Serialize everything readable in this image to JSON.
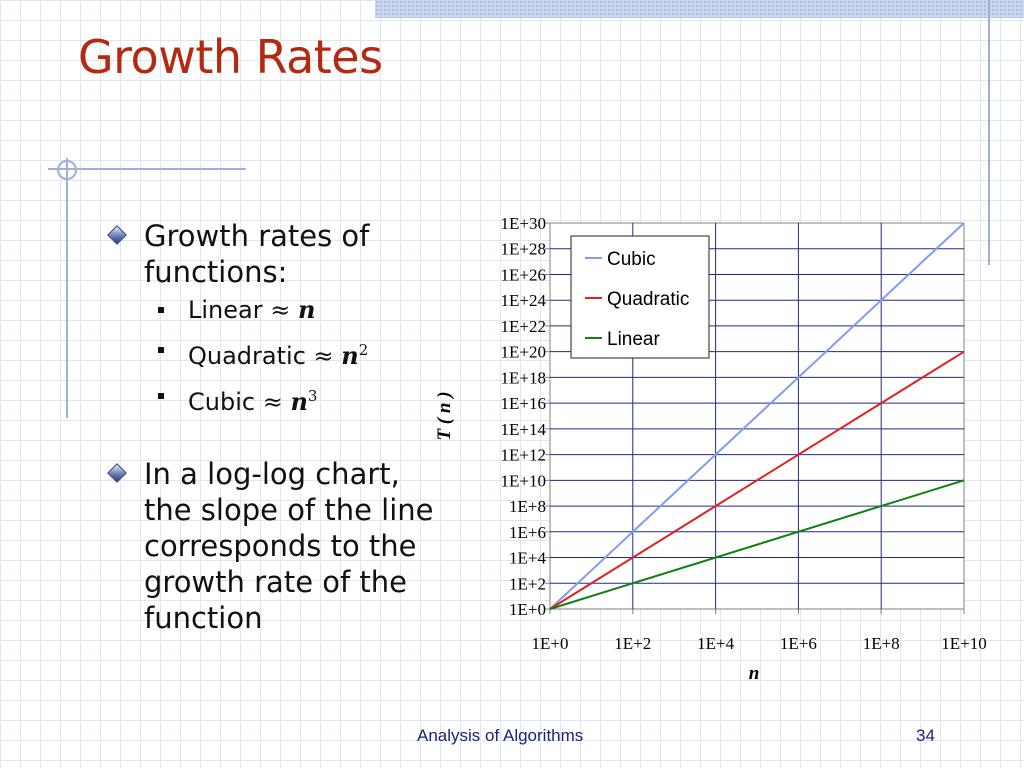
{
  "slide": {
    "title": "Growth Rates",
    "footer": {
      "course": "Analysis of Algorithms",
      "page_number": "34"
    }
  },
  "bullets": {
    "first": {
      "text": "Growth rates of functions:",
      "sub": [
        {
          "label": "Linear",
          "approx": "≈",
          "var": "n",
          "exp": ""
        },
        {
          "label": "Quadratic",
          "approx": "≈",
          "var": "n",
          "exp": "2"
        },
        {
          "label": "Cubic",
          "approx": "≈",
          "var": "n",
          "exp": "3"
        }
      ]
    },
    "second": {
      "text": "In a log-log chart, the slope of the line corresponds to the growth rate of the function"
    }
  },
  "chart_data": {
    "type": "line",
    "xlabel": "n",
    "ylabel": "T ( n )",
    "x_scale": "log",
    "y_scale": "log",
    "xlim": [
      1,
      10000000000
    ],
    "ylim": [
      1,
      1e+30
    ],
    "x_ticks": [
      "1E+0",
      "1E+2",
      "1E+4",
      "1E+6",
      "1E+8",
      "1E+10"
    ],
    "y_ticks": [
      "1E+0",
      "1E+2",
      "1E+4",
      "1E+6",
      "1E+8",
      "1E+10",
      "1E+12",
      "1E+14",
      "1E+16",
      "1E+18",
      "1E+20",
      "1E+22",
      "1E+24",
      "1E+26",
      "1E+28",
      "1E+30"
    ],
    "grid": true,
    "legend_position": "top-right",
    "series": [
      {
        "name": "Cubic",
        "color": "#7f9cf0",
        "x": [
          1,
          10000000000
        ],
        "y": [
          1,
          1e+30
        ]
      },
      {
        "name": "Quadratic",
        "color": "#e02020",
        "x": [
          1,
          10000000000
        ],
        "y": [
          1,
          1e+20
        ]
      },
      {
        "name": "Linear",
        "color": "#108010",
        "x": [
          1,
          10000000000
        ],
        "y": [
          1,
          10000000000.0
        ]
      }
    ]
  },
  "colors": {
    "title": "#b22a12",
    "footer": "#1a237e",
    "grid_lines": "#1e2a8c"
  },
  "icons": {
    "bullet_level1": "diamond-bullet-icon",
    "bullet_level2": "square-bullet-icon"
  }
}
